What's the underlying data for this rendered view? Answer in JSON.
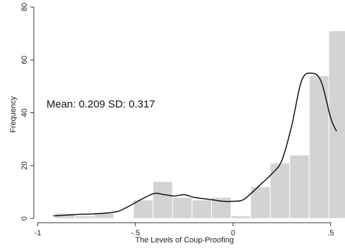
{
  "chart_data": {
    "type": "bar",
    "subtype": "histogram-with-density",
    "xlabel": "The Levels of Coup-Proofing",
    "ylabel": "Frequency",
    "annotation": "Mean: 0.209 SD: 0.317",
    "xlim": [
      -1.02,
      0.555
    ],
    "ylim": [
      0,
      80
    ],
    "x_ticks": [
      -1,
      -0.5,
      0,
      0.5
    ],
    "x_tick_labels": [
      "-1",
      "-.5",
      "0",
      ".5"
    ],
    "y_ticks": [
      0,
      20,
      40,
      60,
      80
    ],
    "y_tick_labels": [
      "0",
      "20",
      "40",
      "60",
      "80"
    ],
    "bin_width": 0.1,
    "bins": [
      {
        "start": -0.91,
        "end": -0.81,
        "value": 2
      },
      {
        "start": -0.81,
        "end": -0.71,
        "value": 1
      },
      {
        "start": -0.71,
        "end": -0.61,
        "value": 2
      },
      {
        "start": -0.61,
        "end": -0.51,
        "value": 0
      },
      {
        "start": -0.51,
        "end": -0.41,
        "value": 7
      },
      {
        "start": -0.41,
        "end": -0.31,
        "value": 14
      },
      {
        "start": -0.31,
        "end": -0.21,
        "value": 8
      },
      {
        "start": -0.21,
        "end": -0.11,
        "value": 7
      },
      {
        "start": -0.11,
        "end": -0.01,
        "value": 8
      },
      {
        "start": -0.01,
        "end": 0.09,
        "value": 1
      },
      {
        "start": 0.09,
        "end": 0.19,
        "value": 12
      },
      {
        "start": 0.19,
        "end": 0.29,
        "value": 21
      },
      {
        "start": 0.29,
        "end": 0.39,
        "value": 24
      },
      {
        "start": 0.39,
        "end": 0.49,
        "value": 54
      },
      {
        "start": 0.49,
        "end": 0.59,
        "value": 71
      }
    ],
    "density_curve": {
      "x": [
        -0.92,
        -0.8,
        -0.7,
        -0.6,
        -0.55,
        -0.5,
        -0.45,
        -0.4,
        -0.35,
        -0.3,
        -0.25,
        -0.2,
        -0.15,
        -0.1,
        -0.05,
        0,
        0.05,
        0.1,
        0.15,
        0.2,
        0.25,
        0.3,
        0.35,
        0.4,
        0.45,
        0.5,
        0.53
      ],
      "y": [
        1,
        1.5,
        1.8,
        2.5,
        4,
        6,
        8,
        9.5,
        9,
        8.5,
        9,
        8,
        7.5,
        7,
        6.5,
        6.5,
        7,
        10,
        13.5,
        17,
        22,
        35,
        52,
        55,
        52,
        38,
        33
      ]
    },
    "colors": {
      "bar_fill": "#d3d3d3",
      "bar_stroke": "#ffffff",
      "curve": "#111111",
      "axis": "#333333"
    }
  }
}
